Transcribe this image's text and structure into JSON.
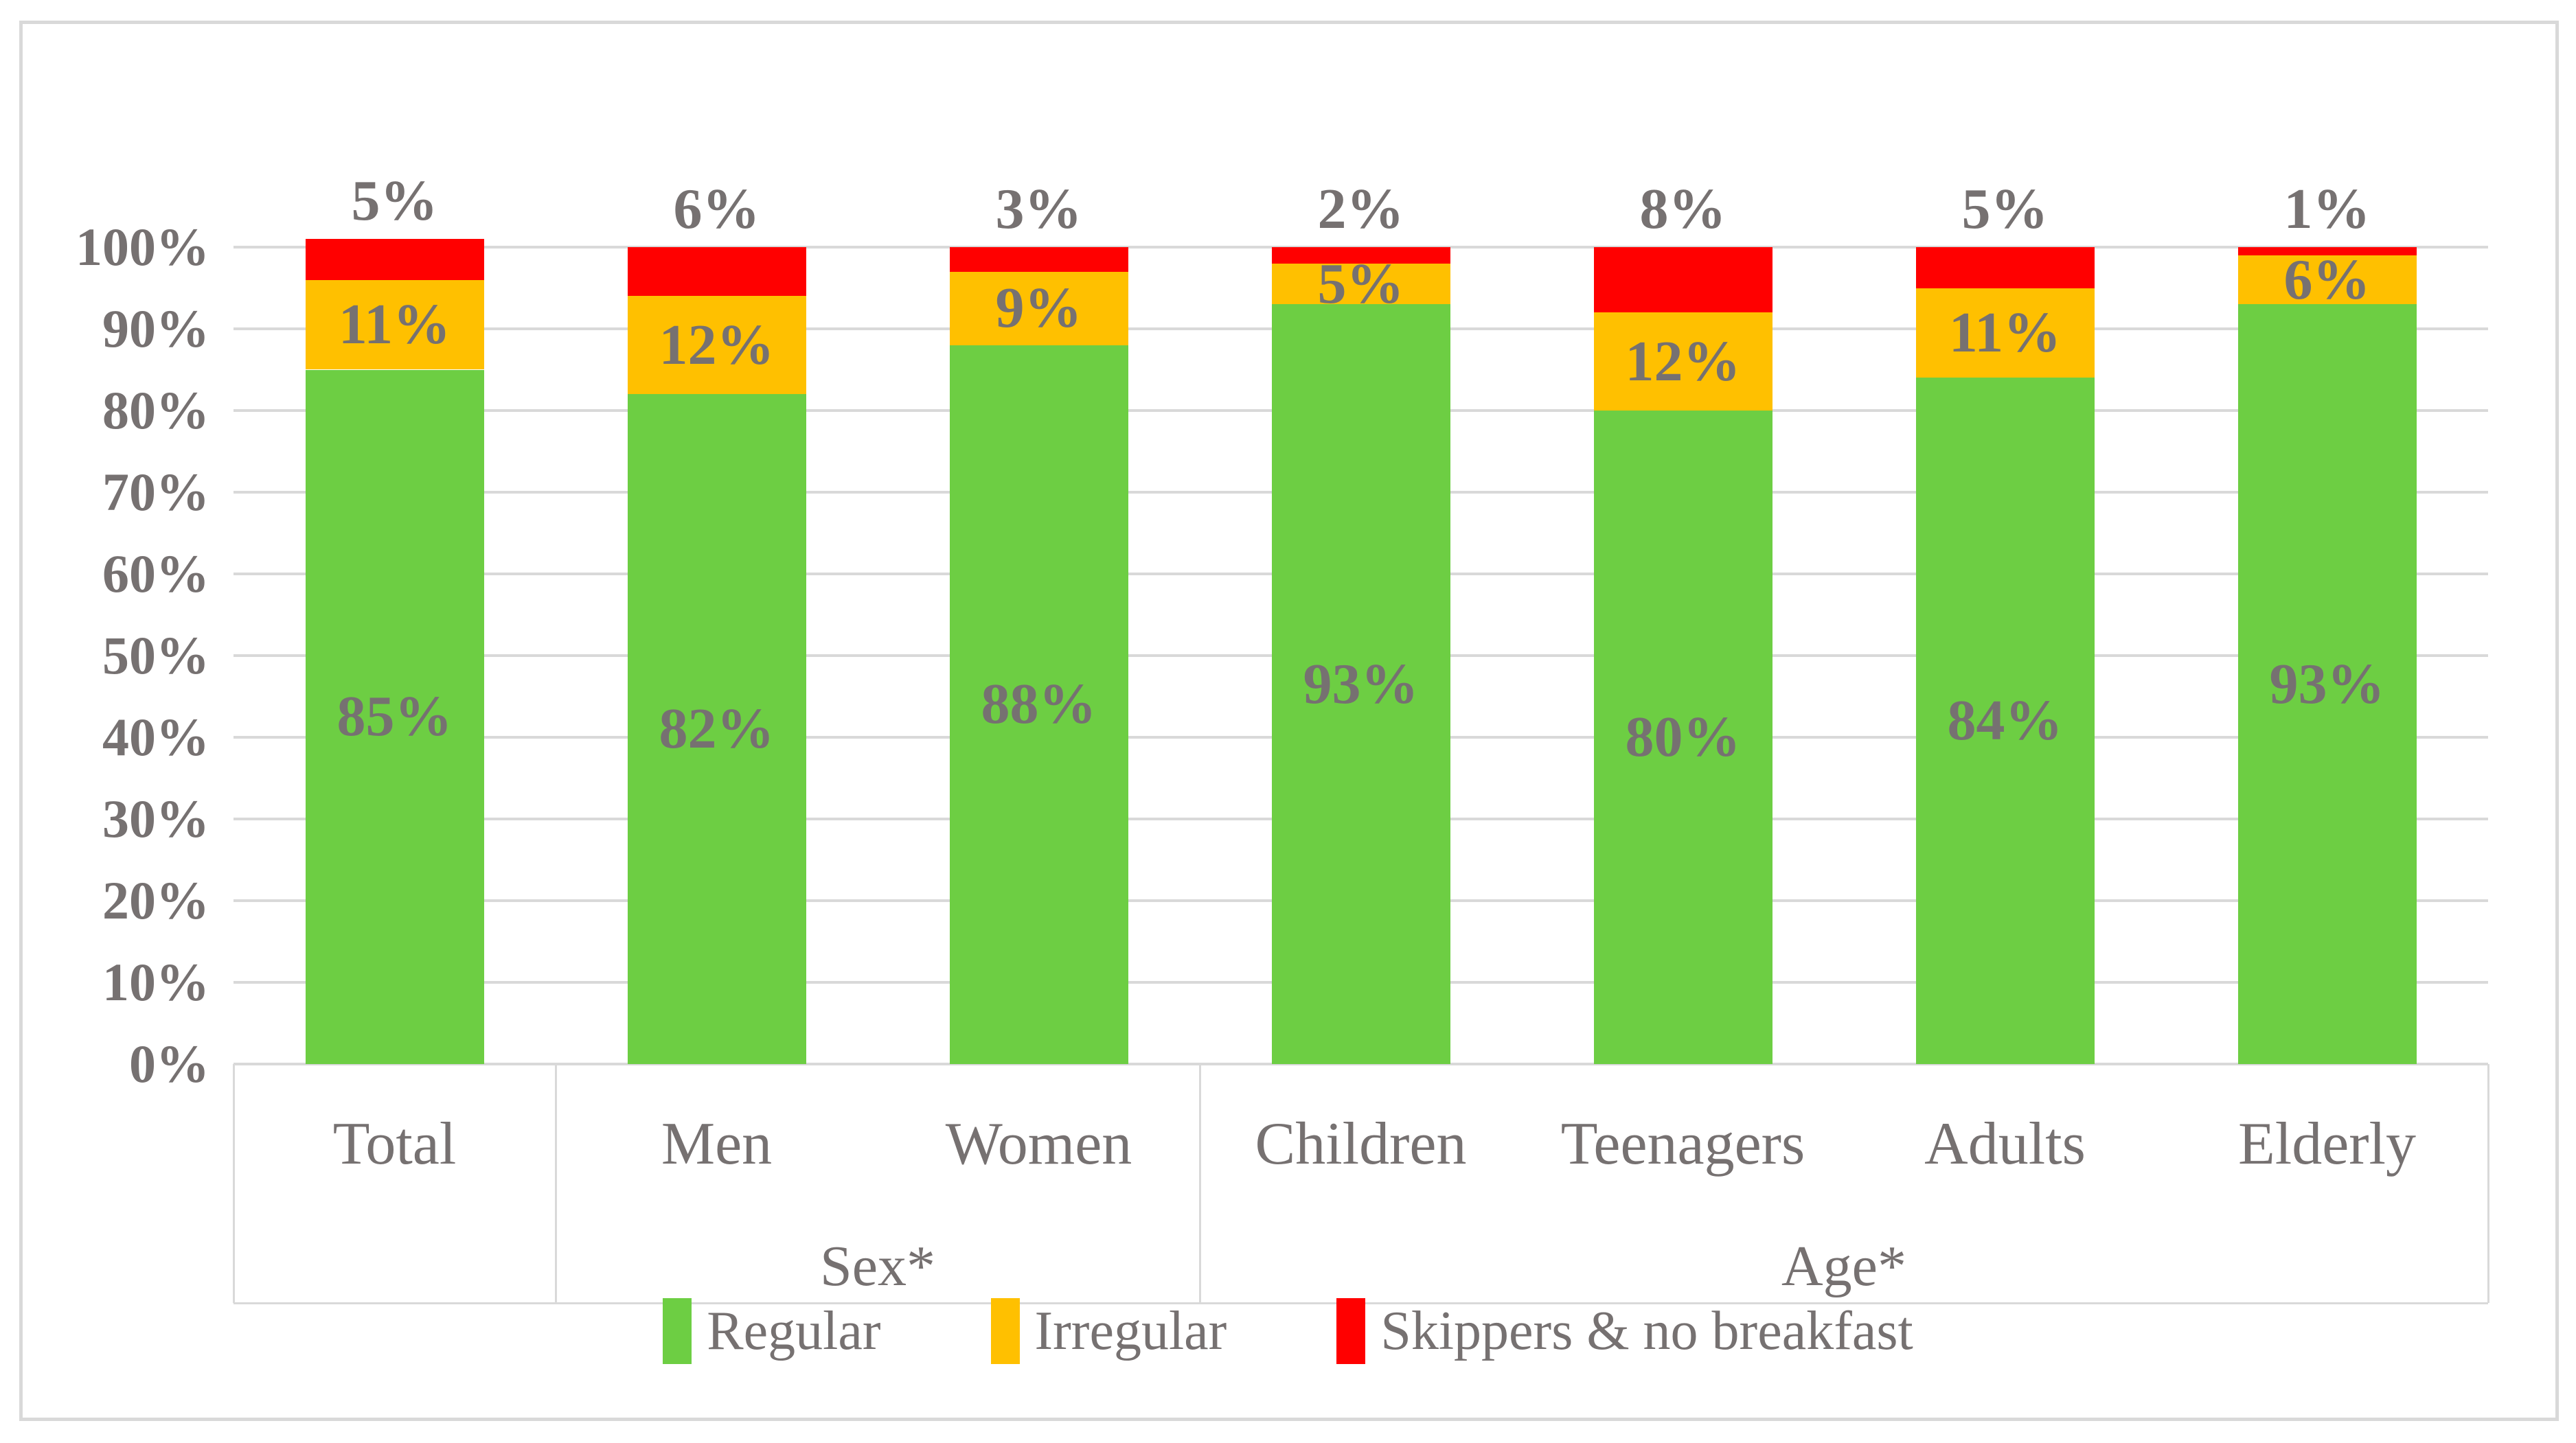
{
  "chart_data": {
    "type": "bar",
    "stacked": true,
    "title": "",
    "categories": [
      "Total",
      "Men",
      "Women",
      "Children",
      "Teenagers",
      "Adults",
      "Elderly"
    ],
    "series": [
      {
        "name": "Regular",
        "color": "#6DCE43",
        "values": [
          85,
          82,
          88,
          93,
          80,
          84,
          93
        ]
      },
      {
        "name": "Irregular",
        "color": "#FFC000",
        "values": [
          11,
          12,
          9,
          5,
          12,
          11,
          6
        ]
      },
      {
        "name": "Skippers & no breakfast",
        "color": "#FF0000",
        "values": [
          5,
          6,
          3,
          2,
          8,
          5,
          1
        ]
      }
    ],
    "group_labels": [
      {
        "label": "Sex*",
        "start": 1,
        "end": 2
      },
      {
        "label": "Age*",
        "start": 3,
        "end": 6
      }
    ],
    "y_axis": {
      "min": 0,
      "max": 100,
      "step": 10,
      "tick_suffix": "%"
    },
    "data_label_suffix": "%",
    "grid": true,
    "legend_position": "bottom"
  },
  "colors": {
    "text": "#767171",
    "gridline": "#D9D9D9",
    "frame": "#D9D9D9",
    "background": "#FFFFFF"
  }
}
